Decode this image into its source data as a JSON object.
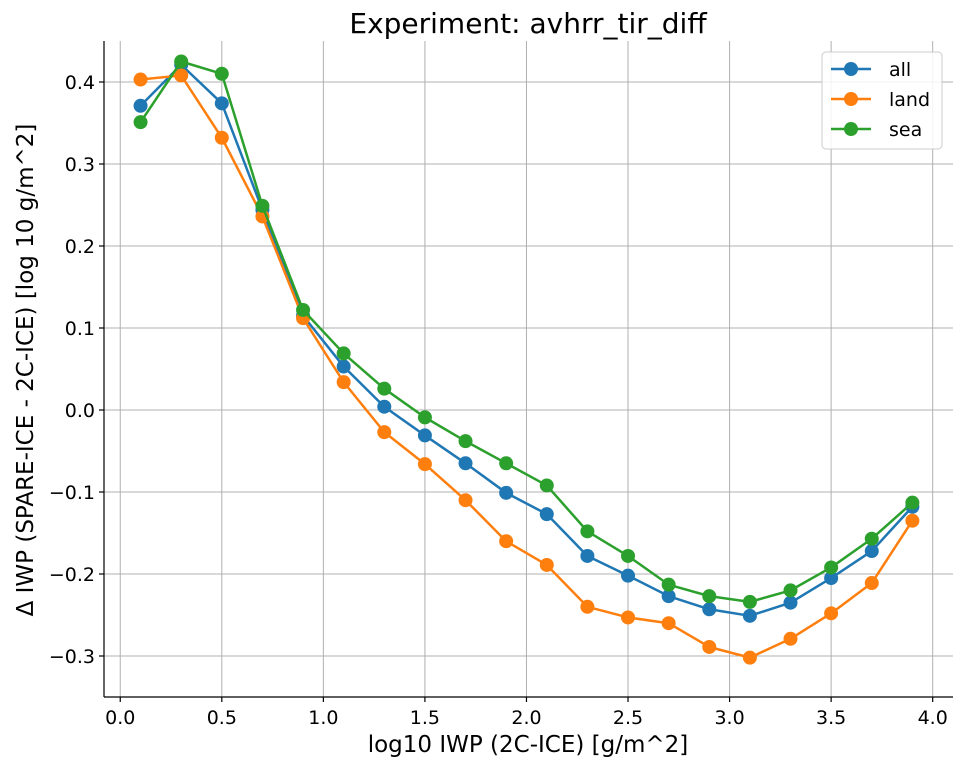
{
  "chart_data": {
    "type": "line",
    "title": "Experiment: avhrr_tir_diff",
    "xlabel": "log10 IWP (2C-ICE) [g/m^2]",
    "ylabel": "Δ IWP (SPARE-ICE - 2C-ICE) [log 10 g/m^2]",
    "xlim": [
      -0.08,
      4.1
    ],
    "ylim": [
      -0.35,
      0.45
    ],
    "xticks": [
      0.0,
      0.5,
      1.0,
      1.5,
      2.0,
      2.5,
      3.0,
      3.5,
      4.0
    ],
    "xtick_labels": [
      "0.0",
      "0.5",
      "1.0",
      "1.5",
      "2.0",
      "2.5",
      "3.0",
      "3.5",
      "4.0"
    ],
    "yticks": [
      -0.3,
      -0.2,
      -0.1,
      0.0,
      0.1,
      0.2,
      0.3,
      0.4
    ],
    "ytick_labels": [
      "−0.3",
      "−0.2",
      "−0.1",
      "0.0",
      "0.1",
      "0.2",
      "0.3",
      "0.4"
    ],
    "grid": true,
    "legend_position": "top-right",
    "x": [
      0.1,
      0.3,
      0.5,
      0.7,
      0.9,
      1.1,
      1.3,
      1.5,
      1.7,
      1.9,
      2.1,
      2.3,
      2.5,
      2.7,
      2.9,
      3.1,
      3.3,
      3.5,
      3.7,
      3.9
    ],
    "series": [
      {
        "name": "all",
        "color": "#1f77b4",
        "values": [
          0.371,
          0.421,
          0.374,
          0.244,
          0.115,
          0.053,
          0.004,
          -0.031,
          -0.065,
          -0.101,
          -0.127,
          -0.178,
          -0.202,
          -0.227,
          -0.243,
          -0.251,
          -0.235,
          -0.205,
          -0.172,
          -0.118
        ]
      },
      {
        "name": "land",
        "color": "#ff7f0e",
        "values": [
          0.403,
          0.408,
          0.332,
          0.236,
          0.112,
          0.034,
          -0.027,
          -0.066,
          -0.11,
          -0.16,
          -0.189,
          -0.24,
          -0.253,
          -0.26,
          -0.289,
          -0.302,
          -0.279,
          -0.248,
          -0.211,
          -0.135
        ]
      },
      {
        "name": "sea",
        "color": "#2ca02c",
        "values": [
          0.351,
          0.425,
          0.41,
          0.249,
          0.122,
          0.069,
          0.026,
          -0.009,
          -0.038,
          -0.065,
          -0.092,
          -0.148,
          -0.178,
          -0.213,
          -0.227,
          -0.234,
          -0.22,
          -0.192,
          -0.157,
          -0.113
        ]
      }
    ]
  }
}
